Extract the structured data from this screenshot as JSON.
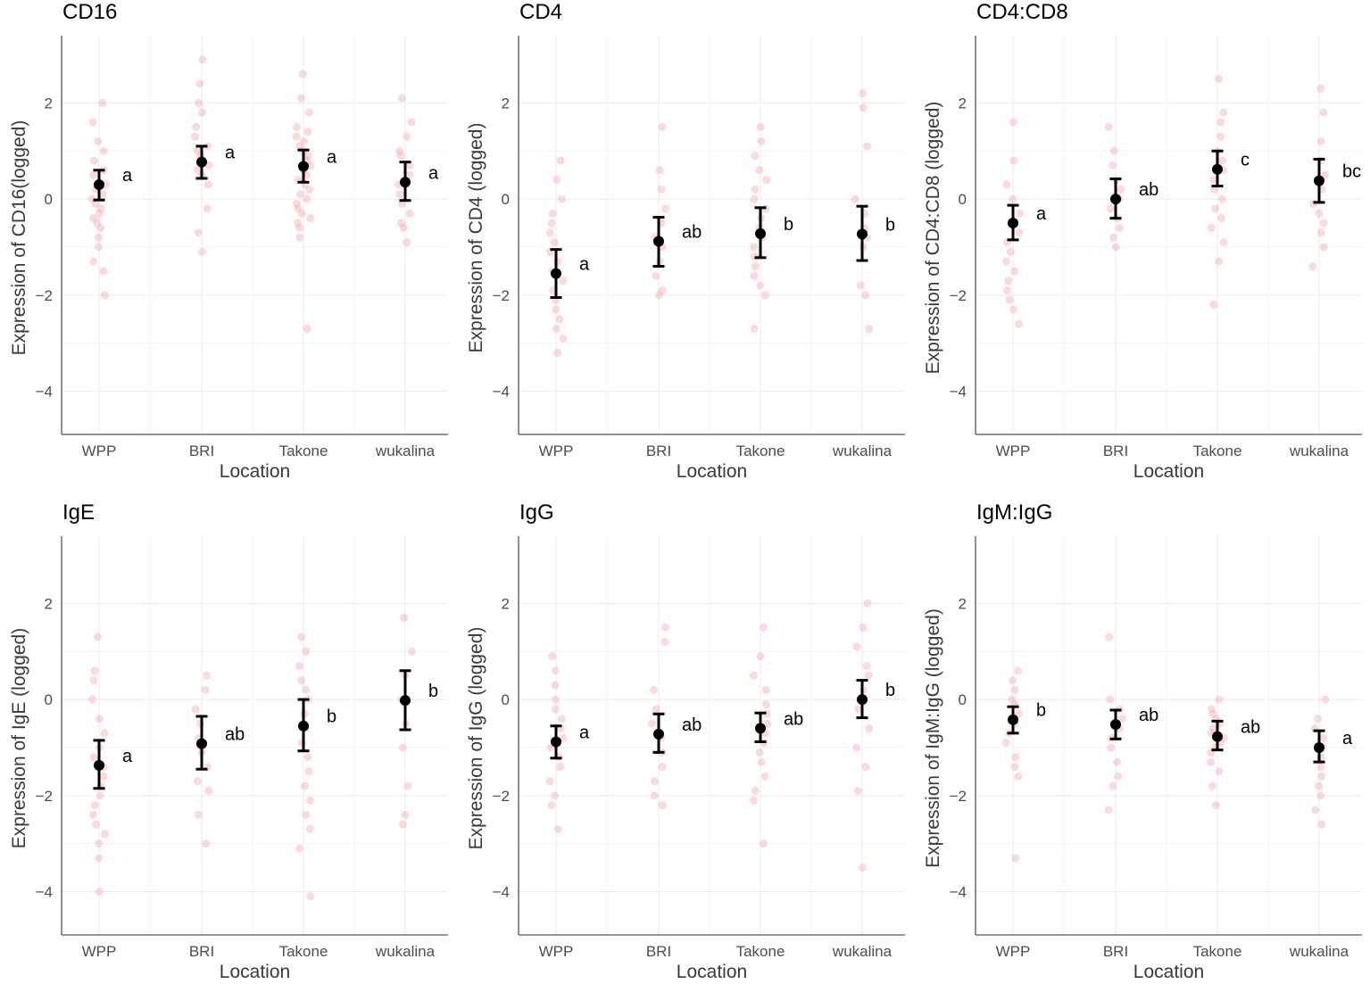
{
  "colors": {
    "point": "#f4a3a8",
    "mean": "#000000",
    "grid": "#ebebeb",
    "axis_line": "#555555"
  },
  "chart_data": [
    {
      "type": "scatter",
      "title": "CD16",
      "xlabel": "Location",
      "ylabel": "Expression of CD16(logged)",
      "categories": [
        "WPP",
        "BRI",
        "Takone",
        "wukalina"
      ],
      "ylim": [
        -4.9,
        3.4
      ],
      "yticks": [
        -4,
        -2,
        0,
        2
      ],
      "ytick_labels": [
        "−4",
        "−2",
        "0",
        "2"
      ],
      "means": [
        0.3,
        0.77,
        0.68,
        0.35
      ],
      "ci_low": [
        -0.02,
        0.43,
        0.35,
        -0.03
      ],
      "ci_high": [
        0.6,
        1.1,
        1.02,
        0.77
      ],
      "letters": [
        "a",
        "a",
        "a",
        "a"
      ],
      "points": [
        [
          2.0,
          1.6,
          1.2,
          1.0,
          0.8,
          0.6,
          0.5,
          0.3,
          0.2,
          0.1,
          0.0,
          -0.1,
          -0.2,
          -0.3,
          -0.4,
          -0.5,
          -0.6,
          -0.8,
          -1.0,
          -1.3,
          -1.5,
          -2.0
        ],
        [
          2.9,
          2.4,
          2.0,
          1.8,
          1.5,
          1.3,
          1.1,
          1.0,
          0.9,
          0.7,
          0.6,
          0.5,
          0.3,
          -0.2,
          -0.7,
          -1.1
        ],
        [
          2.6,
          2.1,
          1.8,
          1.5,
          1.4,
          1.3,
          1.2,
          1.1,
          1.0,
          0.9,
          0.8,
          0.7,
          0.6,
          0.5,
          0.4,
          0.3,
          0.2,
          0.1,
          0.0,
          -0.1,
          -0.2,
          -0.3,
          -0.4,
          -0.5,
          -0.6,
          -0.8,
          -2.7
        ],
        [
          2.1,
          1.6,
          1.3,
          1.0,
          0.9,
          0.7,
          0.5,
          0.3,
          0.1,
          -0.1,
          -0.3,
          -0.5,
          -0.6,
          -0.9
        ]
      ]
    },
    {
      "type": "scatter",
      "title": "CD4",
      "xlabel": "Location",
      "ylabel": "Expression of CD4 (logged)",
      "categories": [
        "WPP",
        "BRI",
        "Takone",
        "wukalina"
      ],
      "ylim": [
        -4.9,
        3.4
      ],
      "yticks": [
        -4,
        -2,
        0,
        2
      ],
      "ytick_labels": [
        "−4",
        "−2",
        "0",
        "2"
      ],
      "means": [
        -1.55,
        -0.88,
        -0.72,
        -0.73
      ],
      "ci_low": [
        -2.05,
        -1.4,
        -1.22,
        -1.28
      ],
      "ci_high": [
        -1.05,
        -0.38,
        -0.18,
        -0.15
      ],
      "letters": [
        "a",
        "ab",
        "b",
        "b"
      ],
      "points": [
        [
          0.8,
          0.4,
          0.0,
          -0.3,
          -0.5,
          -0.7,
          -0.9,
          -1.1,
          -1.3,
          -1.5,
          -1.7,
          -1.9,
          -2.1,
          -2.3,
          -2.5,
          -2.7,
          -2.9,
          -3.2
        ],
        [
          1.5,
          0.6,
          0.2,
          -0.2,
          -0.5,
          -0.8,
          -1.0,
          -1.3,
          -1.6,
          -1.9,
          -2.0
        ],
        [
          1.5,
          1.2,
          0.9,
          0.6,
          0.4,
          0.2,
          0.0,
          -0.2,
          -0.4,
          -0.6,
          -0.8,
          -1.0,
          -1.2,
          -1.4,
          -1.6,
          -1.8,
          -2.0,
          -2.7
        ],
        [
          2.2,
          1.9,
          1.1,
          0.0,
          -0.3,
          -0.6,
          -0.8,
          -1.0,
          -1.8,
          -2.0,
          -2.7
        ]
      ]
    },
    {
      "type": "scatter",
      "title": "CD4:CD8",
      "xlabel": "Location",
      "ylabel": "Expression of CD4:CD8 (logged)",
      "categories": [
        "WPP",
        "BRI",
        "Takone",
        "wukalina"
      ],
      "ylim": [
        -4.9,
        3.4
      ],
      "yticks": [
        -4,
        -2,
        0,
        2
      ],
      "ytick_labels": [
        "−4",
        "−2",
        "0",
        "2"
      ],
      "means": [
        -0.5,
        0.0,
        0.62,
        0.38
      ],
      "ci_low": [
        -0.85,
        -0.4,
        0.27,
        -0.07
      ],
      "ci_high": [
        -0.13,
        0.42,
        1.0,
        0.83
      ],
      "letters": [
        "a",
        "ab",
        "c",
        "bc"
      ],
      "points": [
        [
          1.6,
          0.8,
          0.3,
          0.0,
          -0.3,
          -0.5,
          -0.7,
          -0.9,
          -1.1,
          -1.3,
          -1.5,
          -1.7,
          -1.9,
          -2.1,
          -2.3,
          -2.6
        ],
        [
          1.5,
          1.0,
          0.7,
          0.4,
          0.2,
          0.0,
          -0.2,
          -0.4,
          -0.6,
          -0.8,
          -1.0
        ],
        [
          2.5,
          1.8,
          1.6,
          1.3,
          1.0,
          0.8,
          0.6,
          0.4,
          0.2,
          0.0,
          -0.2,
          -0.4,
          -0.6,
          -0.9,
          -1.3,
          -2.2
        ],
        [
          2.3,
          1.8,
          1.2,
          0.8,
          0.5,
          0.2,
          -0.1,
          -0.3,
          -0.5,
          -0.7,
          -1.0,
          -1.4
        ]
      ]
    },
    {
      "type": "scatter",
      "title": "IgE",
      "xlabel": "Location",
      "ylabel": "Expression of IgE (logged)",
      "categories": [
        "WPP",
        "BRI",
        "Takone",
        "wukalina"
      ],
      "ylim": [
        -4.9,
        3.4
      ],
      "yticks": [
        -4,
        -2,
        0,
        2
      ],
      "ytick_labels": [
        "−4",
        "−2",
        "0",
        "2"
      ],
      "means": [
        -1.37,
        -0.92,
        -0.55,
        -0.02
      ],
      "ci_low": [
        -1.85,
        -1.45,
        -1.07,
        -0.63
      ],
      "ci_high": [
        -0.85,
        -0.35,
        0.0,
        0.6
      ],
      "letters": [
        "a",
        "ab",
        "b",
        "b"
      ],
      "points": [
        [
          1.3,
          0.6,
          0.4,
          0.0,
          -0.4,
          -0.7,
          -1.0,
          -1.2,
          -1.4,
          -1.6,
          -1.8,
          -2.0,
          -2.2,
          -2.4,
          -2.6,
          -2.8,
          -3.0,
          -3.3,
          -4.0
        ],
        [
          0.5,
          0.2,
          -0.2,
          -0.5,
          -0.8,
          -1.1,
          -1.4,
          -1.7,
          -1.9,
          -2.4,
          -3.0
        ],
        [
          1.3,
          1.0,
          0.7,
          0.4,
          0.2,
          0.0,
          -0.3,
          -0.6,
          -0.9,
          -1.2,
          -1.5,
          -1.8,
          -2.1,
          -2.4,
          -2.7,
          -3.1,
          -4.1
        ],
        [
          1.7,
          1.0,
          0.5,
          0.0,
          -0.5,
          -1.0,
          -1.8,
          -2.4,
          -2.6
        ]
      ]
    },
    {
      "type": "scatter",
      "title": "IgG",
      "xlabel": "Location",
      "ylabel": "Expression of IgG (logged)",
      "categories": [
        "WPP",
        "BRI",
        "Takone",
        "wukalina"
      ],
      "ylim": [
        -4.9,
        3.4
      ],
      "yticks": [
        -4,
        -2,
        0,
        2
      ],
      "ytick_labels": [
        "−4",
        "−2",
        "0",
        "2"
      ],
      "means": [
        -0.88,
        -0.72,
        -0.6,
        0.0
      ],
      "ci_low": [
        -1.22,
        -1.1,
        -0.88,
        -0.38
      ],
      "ci_high": [
        -0.55,
        -0.3,
        -0.28,
        0.4
      ],
      "letters": [
        "a",
        "ab",
        "ab",
        "b"
      ],
      "points": [
        [
          0.9,
          0.6,
          0.3,
          0.0,
          -0.2,
          -0.4,
          -0.6,
          -0.8,
          -1.0,
          -1.2,
          -1.4,
          -1.7,
          -2.0,
          -2.2,
          -2.7
        ],
        [
          1.5,
          1.2,
          0.2,
          -0.2,
          -0.5,
          -0.8,
          -1.1,
          -1.4,
          -1.7,
          -2.0,
          -2.2
        ],
        [
          1.5,
          0.9,
          0.5,
          0.2,
          -0.1,
          -0.3,
          -0.5,
          -0.7,
          -0.9,
          -1.1,
          -1.3,
          -1.6,
          -1.9,
          -2.1,
          -3.0
        ],
        [
          2.0,
          1.5,
          1.1,
          0.7,
          0.5,
          0.2,
          -0.2,
          -0.6,
          -1.0,
          -1.4,
          -1.9,
          -3.5
        ]
      ]
    },
    {
      "type": "scatter",
      "title": "IgM:IgG",
      "xlabel": "Location",
      "ylabel": "Expression of IgM:IgG (logged)",
      "categories": [
        "WPP",
        "BRI",
        "Takone",
        "wukalina"
      ],
      "ylim": [
        -4.9,
        3.4
      ],
      "yticks": [
        -4,
        -2,
        0,
        2
      ],
      "ytick_labels": [
        "−4",
        "−2",
        "0",
        "2"
      ],
      "means": [
        -0.42,
        -0.52,
        -0.77,
        -1.0
      ],
      "ci_low": [
        -0.7,
        -0.82,
        -1.05,
        -1.3
      ],
      "ci_high": [
        -0.15,
        -0.22,
        -0.45,
        -0.65
      ],
      "letters": [
        "b",
        "ab",
        "ab",
        "a"
      ],
      "points": [
        [
          0.6,
          0.4,
          0.2,
          0.0,
          -0.1,
          -0.3,
          -0.5,
          -0.7,
          -0.9,
          -1.2,
          -1.4,
          -1.6,
          -3.3
        ],
        [
          1.3,
          0.0,
          -0.2,
          -0.4,
          -0.6,
          -0.8,
          -1.0,
          -1.3,
          -1.6,
          -1.8,
          -2.3
        ],
        [
          0.0,
          -0.2,
          -0.3,
          -0.4,
          -0.5,
          -0.6,
          -0.7,
          -0.8,
          -0.9,
          -1.0,
          -1.1,
          -1.3,
          -1.5,
          -1.8,
          -2.2
        ],
        [
          0.0,
          -0.4,
          -0.6,
          -0.8,
          -1.0,
          -1.2,
          -1.4,
          -1.6,
          -1.8,
          -2.0,
          -2.3,
          -2.6
        ]
      ]
    }
  ]
}
